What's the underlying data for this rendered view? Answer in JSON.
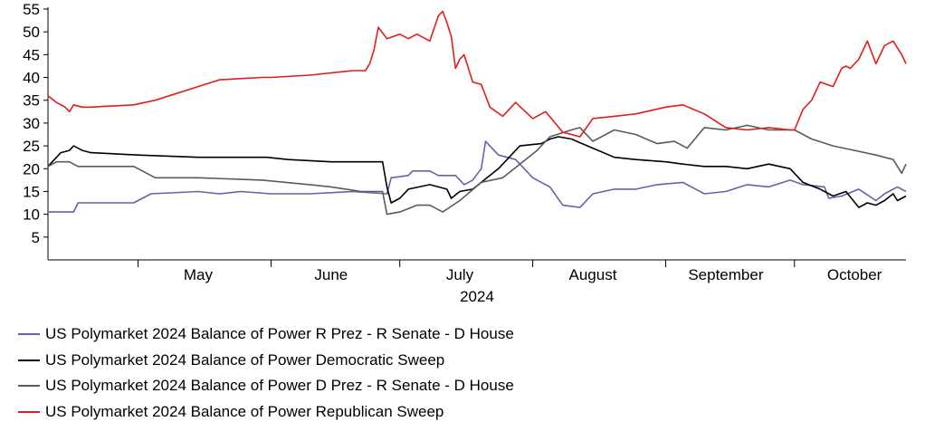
{
  "chart_data": {
    "type": "line",
    "xlabel": "2024",
    "x_ticks": [
      "May",
      "June",
      "July",
      "August",
      "September",
      "October"
    ],
    "ylim": [
      0,
      55
    ],
    "y_ticks": [
      5,
      10,
      15,
      20,
      25,
      30,
      35,
      40,
      45,
      50,
      55
    ],
    "x_range": [
      "2024-04-10",
      "2024-10-27"
    ],
    "grid": false,
    "legend_position": "bottom",
    "series": [
      {
        "name": "US Polymarket 2024 Balance of Power R Prez - R Senate - D House",
        "color": "#6065a9",
        "x": [
          "2024-04-10",
          "2024-04-16",
          "2024-04-17",
          "2024-04-26",
          "2024-04-30",
          "2024-05-04",
          "2024-05-15",
          "2024-05-20",
          "2024-05-25",
          "2024-06-01",
          "2024-06-10",
          "2024-06-20",
          "2024-06-28",
          "2024-06-29",
          "2024-07-03",
          "2024-07-04",
          "2024-07-08",
          "2024-07-10",
          "2024-07-14",
          "2024-07-16",
          "2024-07-18",
          "2024-07-20",
          "2024-07-21",
          "2024-07-24",
          "2024-07-28",
          "2024-08-01",
          "2024-08-05",
          "2024-08-08",
          "2024-08-12",
          "2024-08-15",
          "2024-08-20",
          "2024-08-25",
          "2024-08-30",
          "2024-09-05",
          "2024-09-10",
          "2024-09-15",
          "2024-09-20",
          "2024-09-25",
          "2024-09-30",
          "2024-10-03",
          "2024-10-08",
          "2024-10-09",
          "2024-10-12",
          "2024-10-16",
          "2024-10-20",
          "2024-10-22",
          "2024-10-25",
          "2024-10-27"
        ],
        "y": [
          10.5,
          10.5,
          12.5,
          12.5,
          12.5,
          14.5,
          15,
          14.5,
          15,
          14.5,
          14.5,
          15,
          14.5,
          18,
          18.5,
          19.5,
          19.5,
          18.5,
          18.5,
          16.5,
          17.5,
          20,
          26,
          23,
          22,
          18,
          16,
          12,
          11.5,
          14.5,
          15.5,
          15.5,
          16.5,
          17,
          14.5,
          15,
          16.5,
          16,
          17.5,
          16.5,
          16,
          13.5,
          14,
          15.5,
          13,
          14.5,
          16,
          15
        ]
      },
      {
        "name": "US Polymarket 2024 Balance of Power Democratic Sweep",
        "color": "#000000",
        "x": [
          "2024-04-10",
          "2024-04-13",
          "2024-04-15",
          "2024-04-16",
          "2024-04-18",
          "2024-04-20",
          "2024-05-01",
          "2024-05-15",
          "2024-05-31",
          "2024-06-05",
          "2024-06-15",
          "2024-06-27",
          "2024-06-28",
          "2024-06-29",
          "2024-07-01",
          "2024-07-03",
          "2024-07-08",
          "2024-07-10",
          "2024-07-12",
          "2024-07-13",
          "2024-07-15",
          "2024-07-18",
          "2024-07-20",
          "2024-07-24",
          "2024-07-29",
          "2024-08-03",
          "2024-08-05",
          "2024-08-07",
          "2024-08-10",
          "2024-08-15",
          "2024-08-20",
          "2024-08-25",
          "2024-09-01",
          "2024-09-05",
          "2024-09-10",
          "2024-09-15",
          "2024-09-20",
          "2024-09-25",
          "2024-09-30",
          "2024-10-03",
          "2024-10-07",
          "2024-10-10",
          "2024-10-13",
          "2024-10-16",
          "2024-10-18",
          "2024-10-20",
          "2024-10-22",
          "2024-10-24",
          "2024-10-25",
          "2024-10-27"
        ],
        "y": [
          20.5,
          23.5,
          24,
          25,
          24,
          23.5,
          23,
          22.5,
          22.5,
          22,
          21.5,
          21.5,
          16,
          12.5,
          13.5,
          15.5,
          16.5,
          16,
          15.5,
          13.5,
          15,
          15.5,
          17,
          20,
          25,
          25.5,
          26.5,
          27,
          26.5,
          24.5,
          22.5,
          22,
          21.5,
          21,
          20.5,
          20.5,
          20,
          21,
          20,
          17,
          15.5,
          14,
          15,
          11.5,
          12.5,
          12,
          13,
          14.5,
          13,
          14
        ]
      },
      {
        "name": "US Polymarket 2024 Balance of Power D Prez - R Senate - D House",
        "color": "#5a5a5a",
        "x": [
          "2024-04-10",
          "2024-04-12",
          "2024-04-15",
          "2024-04-17",
          "2024-04-20",
          "2024-04-30",
          "2024-05-05",
          "2024-05-15",
          "2024-05-30",
          "2024-06-10",
          "2024-06-15",
          "2024-06-22",
          "2024-06-27",
          "2024-06-28",
          "2024-07-01",
          "2024-07-05",
          "2024-07-08",
          "2024-07-11",
          "2024-07-15",
          "2024-07-20",
          "2024-07-25",
          "2024-07-29",
          "2024-08-02",
          "2024-08-05",
          "2024-08-10",
          "2024-08-12",
          "2024-08-15",
          "2024-08-20",
          "2024-08-25",
          "2024-08-30",
          "2024-09-03",
          "2024-09-06",
          "2024-09-10",
          "2024-09-15",
          "2024-09-20",
          "2024-09-25",
          "2024-10-01",
          "2024-10-05",
          "2024-10-10",
          "2024-10-15",
          "2024-10-20",
          "2024-10-24",
          "2024-10-26",
          "2024-10-27"
        ],
        "y": [
          20.5,
          21.5,
          21.5,
          20.5,
          20.5,
          20.5,
          18,
          18,
          17.5,
          16.5,
          16,
          15,
          15,
          10,
          10.5,
          12,
          12,
          10.5,
          13,
          17,
          18,
          21,
          24,
          27,
          28.5,
          29,
          26,
          28.5,
          27.5,
          25.5,
          26,
          24.5,
          29,
          28.5,
          29.5,
          28.5,
          28.5,
          26.5,
          25,
          24,
          23,
          22,
          19,
          21
        ]
      },
      {
        "name": "US Polymarket 2024 Balance of Power Republican Sweep",
        "color": "#e21c1c",
        "x": [
          "2024-04-10",
          "2024-04-12",
          "2024-04-14",
          "2024-04-15",
          "2024-04-16",
          "2024-04-18",
          "2024-04-20",
          "2024-04-30",
          "2024-05-05",
          "2024-05-10",
          "2024-05-15",
          "2024-05-20",
          "2024-05-30",
          "2024-06-01",
          "2024-06-10",
          "2024-06-20",
          "2024-06-23",
          "2024-06-24",
          "2024-06-25",
          "2024-06-26",
          "2024-06-28",
          "2024-07-01",
          "2024-07-03",
          "2024-07-05",
          "2024-07-08",
          "2024-07-10",
          "2024-07-11",
          "2024-07-12",
          "2024-07-13",
          "2024-07-14",
          "2024-07-15",
          "2024-07-16",
          "2024-07-18",
          "2024-07-20",
          "2024-07-22",
          "2024-07-25",
          "2024-07-28",
          "2024-08-01",
          "2024-08-04",
          "2024-08-08",
          "2024-08-12",
          "2024-08-15",
          "2024-08-20",
          "2024-08-25",
          "2024-09-01",
          "2024-09-05",
          "2024-09-10",
          "2024-09-15",
          "2024-09-20",
          "2024-09-25",
          "2024-09-30",
          "2024-10-01",
          "2024-10-03",
          "2024-10-05",
          "2024-10-07",
          "2024-10-10",
          "2024-10-12",
          "2024-10-13",
          "2024-10-14",
          "2024-10-16",
          "2024-10-18",
          "2024-10-20",
          "2024-10-22",
          "2024-10-24",
          "2024-10-26",
          "2024-10-27"
        ],
        "y": [
          36,
          34.5,
          33.5,
          32.5,
          34,
          33.5,
          33.5,
          34,
          35,
          36.5,
          38,
          39.5,
          40,
          40,
          40.5,
          41.5,
          41.5,
          43,
          46,
          51,
          48.5,
          49.5,
          48.5,
          49.5,
          48,
          53.5,
          54.5,
          52,
          49,
          42,
          44,
          45,
          39,
          38.5,
          33.5,
          31.5,
          34.5,
          31,
          32.5,
          28,
          27,
          31,
          31.5,
          32,
          33.5,
          34,
          32,
          29,
          28.5,
          29,
          28.5,
          28.5,
          33,
          35,
          39,
          38,
          42,
          42.5,
          42,
          44,
          48,
          43,
          47,
          48,
          45,
          43
        ]
      }
    ]
  }
}
